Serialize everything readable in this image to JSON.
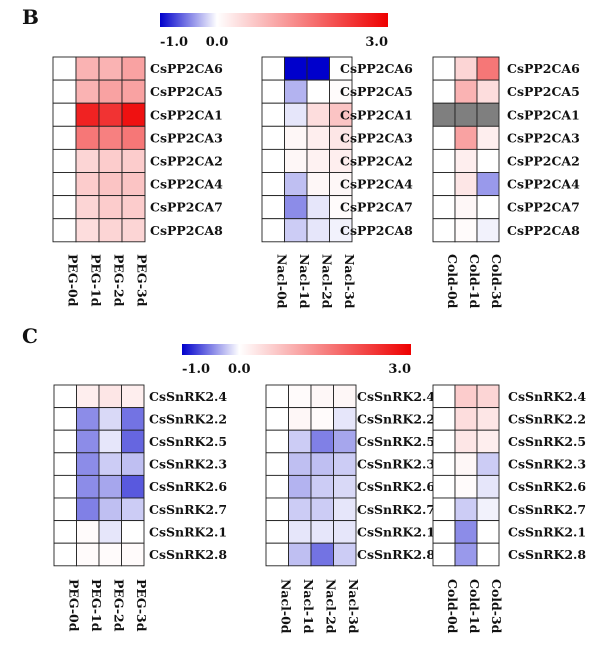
{
  "panels": [
    {
      "letter": "B",
      "colorbar": {
        "min": -1.0,
        "mid": 0.0,
        "max": 3.0,
        "labels": [
          "-1.0",
          "0.0",
          "3.0"
        ]
      },
      "heatmaps": [
        {
          "genes": [
            "CsPP2CA6",
            "CsPP2CA5",
            "CsPP2CA1",
            "CsPP2CA3",
            "CsPP2CA2",
            "CsPP2CA4",
            "CsPP2CA7",
            "CsPP2CA8"
          ],
          "conditions": [
            "PEG-0d",
            "PEG-1d",
            "PEG-2d",
            "PEG-3d"
          ],
          "values": [
            [
              0,
              0.9,
              0.9,
              1.1
            ],
            [
              0,
              0.9,
              1.1,
              1.1
            ],
            [
              0,
              2.6,
              2.4,
              2.8
            ],
            [
              0,
              1.6,
              1.5,
              1.6
            ],
            [
              0,
              0.5,
              0.6,
              0.6
            ],
            [
              0,
              0.6,
              0.7,
              0.7
            ],
            [
              0,
              0.5,
              0.6,
              0.6
            ],
            [
              0,
              0.4,
              0.5,
              0.5
            ]
          ]
        },
        {
          "genes": [
            "CsPP2CA6",
            "CsPP2CA5",
            "CsPP2CA1",
            "CsPP2CA3",
            "CsPP2CA2",
            "CsPP2CA4",
            "CsPP2CA7",
            "CsPP2CA8"
          ],
          "conditions": [
            "Nacl-0d",
            "Nacl-1d",
            "Nacl-2d",
            "Nacl-3d"
          ],
          "values": [
            [
              0,
              -1.0,
              -1.0,
              0
            ],
            [
              0,
              -0.3,
              0,
              0.05
            ],
            [
              0,
              -0.1,
              0.4,
              0.7
            ],
            [
              0,
              0.1,
              0.2,
              0.3
            ],
            [
              0,
              0.1,
              0.15,
              0.2
            ],
            [
              0,
              -0.25,
              0.1,
              0.1
            ],
            [
              0,
              -0.45,
              -0.1,
              0.05
            ],
            [
              0,
              -0.2,
              -0.1,
              -0.05
            ]
          ]
        },
        {
          "genes": [
            "CsPP2CA6",
            "CsPP2CA5",
            "CsPP2CA1",
            "CsPP2CA3",
            "CsPP2CA2",
            "CsPP2CA4",
            "CsPP2CA7",
            "CsPP2CA8"
          ],
          "conditions": [
            "Cold-0d",
            "Cold-1d",
            "Cold-3d"
          ],
          "values": [
            [
              0,
              0.5,
              1.6
            ],
            [
              0,
              0.9,
              0.4
            ],
            [
              null,
              null,
              null
            ],
            [
              0,
              1.1,
              0.2
            ],
            [
              0,
              0.2,
              0
            ],
            [
              0,
              0.3,
              -0.4
            ],
            [
              0,
              0.1,
              0
            ],
            [
              0,
              0.05,
              -0.05
            ]
          ]
        }
      ]
    },
    {
      "letter": "C",
      "colorbar": {
        "min": -1.0,
        "mid": 0.0,
        "max": 3.0,
        "labels": [
          "-1.0",
          "0.0",
          "3.0"
        ]
      },
      "heatmaps": [
        {
          "genes": [
            "CsSnRK2.4",
            "CsSnRK2.2",
            "CsSnRK2.5",
            "CsSnRK2.3",
            "CsSnRK2.6",
            "CsSnRK2.7",
            "CsSnRK2.1",
            "CsSnRK2.8"
          ],
          "conditions": [
            "PEG-0d",
            "PEG-1d",
            "PEG-2d",
            "PEG-3d"
          ],
          "values": [
            [
              0,
              0.2,
              0.3,
              0.2
            ],
            [
              0,
              -0.45,
              -0.15,
              -0.55
            ],
            [
              0,
              -0.45,
              -0.1,
              -0.6
            ],
            [
              0,
              -0.45,
              -0.2,
              -0.25
            ],
            [
              0,
              -0.45,
              -0.35,
              -0.65
            ],
            [
              0,
              -0.5,
              -0.25,
              -0.2
            ],
            [
              0,
              0.05,
              -0.1,
              0
            ],
            [
              0,
              0.05,
              0.05,
              0.05
            ]
          ]
        },
        {
          "genes": [
            "CsSnRK2.4",
            "CsSnRK2.2",
            "CsSnRK2.5",
            "CsSnRK2.3",
            "CsSnRK2.6",
            "CsSnRK2.7",
            "CsSnRK2.1",
            "CsSnRK2.8"
          ],
          "conditions": [
            "Nacl-0d",
            "Nacl-1d",
            "Nacl-2d",
            "Nacl-3d"
          ],
          "values": [
            [
              0,
              0.05,
              0.1,
              0.1
            ],
            [
              0,
              0.1,
              0.05,
              -0.1
            ],
            [
              0,
              -0.2,
              -0.5,
              -0.35
            ],
            [
              0,
              -0.25,
              -0.25,
              -0.2
            ],
            [
              0,
              -0.3,
              -0.2,
              -0.15
            ],
            [
              0,
              -0.2,
              -0.2,
              -0.1
            ],
            [
              0,
              -0.1,
              -0.1,
              -0.1
            ],
            [
              0,
              -0.25,
              -0.55,
              -0.2
            ]
          ]
        },
        {
          "genes": [
            "CsSnRK2.4",
            "CsSnRK2.2",
            "CsSnRK2.5",
            "CsSnRK2.3",
            "CsSnRK2.6",
            "CsSnRK2.7",
            "CsSnRK2.1",
            "CsSnRK2.8"
          ],
          "conditions": [
            "Cold-0d",
            "Cold-1d",
            "Cold-3d"
          ],
          "values": [
            [
              0,
              0.6,
              0.5
            ],
            [
              0,
              0.4,
              0.3
            ],
            [
              0,
              0.3,
              0.2
            ],
            [
              0,
              0.1,
              -0.2
            ],
            [
              0,
              0.05,
              -0.1
            ],
            [
              0,
              -0.2,
              -0.05
            ],
            [
              0,
              -0.45,
              0
            ],
            [
              0,
              -0.4,
              0
            ]
          ]
        }
      ]
    }
  ],
  "chart_data": [
    {
      "type": "heatmap",
      "title": "",
      "color_scale": {
        "min": -1.0,
        "mid": 0.0,
        "max": 3.0,
        "colors": [
          "#0000cc",
          "#ffffff",
          "#ee0000"
        ],
        "missing": "#7f7f7f"
      },
      "groups": [
        "PEG",
        "Nacl",
        "Cold"
      ],
      "rows": [
        "CsPP2CA6",
        "CsPP2CA5",
        "CsPP2CA1",
        "CsPP2CA3",
        "CsPP2CA2",
        "CsPP2CA4",
        "CsPP2CA7",
        "CsPP2CA8"
      ]
    },
    {
      "type": "heatmap",
      "title": "",
      "color_scale": {
        "min": -1.0,
        "mid": 0.0,
        "max": 3.0,
        "colors": [
          "#0000cc",
          "#ffffff",
          "#ee0000"
        ]
      },
      "groups": [
        "PEG",
        "Nacl",
        "Cold"
      ],
      "rows": [
        "CsSnRK2.4",
        "CsSnRK2.2",
        "CsSnRK2.5",
        "CsSnRK2.3",
        "CsSnRK2.6",
        "CsSnRK2.7",
        "CsSnRK2.1",
        "CsSnRK2.8"
      ]
    }
  ]
}
